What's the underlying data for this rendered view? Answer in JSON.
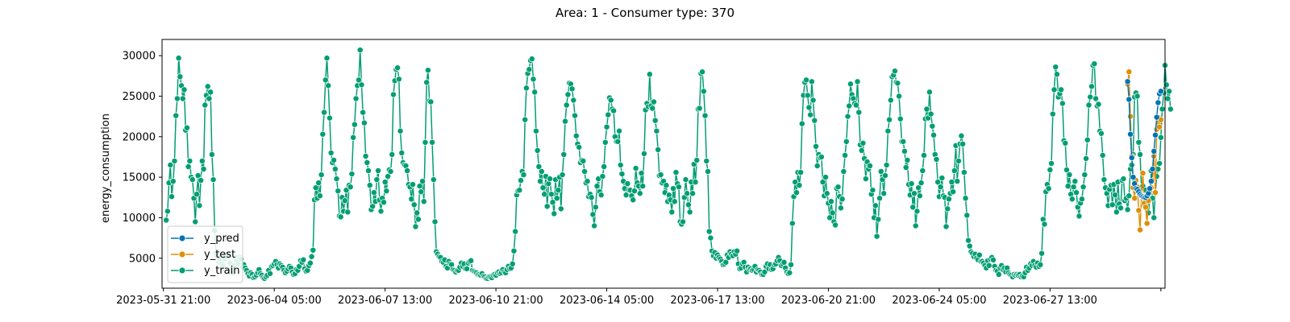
{
  "chart_data": {
    "type": "line",
    "title": "Area: 1 - Consumer type: 370",
    "xlabel": "",
    "ylabel": "energy_consumption",
    "x_tick_labels": [
      "2023-05-31 21:00",
      "2023-06-04 05:00",
      "2023-06-07 13:00",
      "2023-06-10 21:00",
      "2023-06-14 05:00",
      "2023-06-17 13:00",
      "2023-06-20 21:00",
      "2023-06-24 05:00",
      "2023-06-27 13:00",
      ""
    ],
    "x_ticks_hours": [
      0,
      80,
      160,
      240,
      320,
      400,
      480,
      560,
      640,
      720
    ],
    "xlim_hours": [
      -1,
      723
    ],
    "x_start": "2023-05-31 21:00",
    "x_step_hours": 1,
    "ylim": [
      1300,
      32000
    ],
    "y_ticks": [
      5000,
      10000,
      15000,
      20000,
      25000,
      30000
    ],
    "grid": false,
    "legend_position": "lower-left",
    "colors": {
      "y_pred": "#0173b2",
      "y_test": "#de8f05",
      "y_train": "#029e73"
    },
    "series": [
      {
        "name": "y_train",
        "start_offset_hours": 2,
        "values": [
          9700,
          10800,
          14300,
          16500,
          12600,
          14500,
          17000,
          22600,
          24700,
          29700,
          27400,
          26300,
          24700,
          25800,
          20800,
          21100,
          16300,
          17000,
          15000,
          14700,
          12400,
          9500,
          12900,
          15200,
          11500,
          14600,
          17000,
          16000,
          23900,
          25100,
          26200,
          24700,
          25500,
          17800,
          14700,
          8400,
          5600,
          5300,
          4600,
          4800,
          4300,
          4000,
          4900,
          5400,
          5300,
          5400,
          4400,
          3600,
          3200,
          4100,
          5100,
          4700,
          4300,
          5100,
          4900,
          4000,
          4200,
          3800,
          3500,
          3100,
          2800,
          3200,
          3000,
          2600,
          2700,
          2900,
          3200,
          3600,
          3100,
          2900,
          2600,
          2500,
          2700,
          2900,
          3500,
          3100,
          4000,
          4100,
          4300,
          4600,
          4200,
          3800,
          4300,
          4100,
          3900,
          3500,
          3200,
          3400,
          3700,
          4000,
          3800,
          3300,
          3000,
          3100,
          3600,
          3500,
          4000,
          4700,
          4500,
          4800,
          3700,
          3400,
          3500,
          4100,
          4400,
          5200,
          6000,
          12200,
          13700,
          12400,
          14300,
          12700,
          15300,
          20300,
          23000,
          27000,
          29700,
          26300,
          22300,
          18000,
          16800,
          17100,
          16000,
          14800,
          13300,
          10200,
          10100,
          12500,
          10800,
          12100,
          13400,
          10700,
          14000,
          13800,
          15400,
          19900,
          21500,
          24700,
          26300,
          27000,
          30700,
          26400,
          23000,
          21700,
          17600,
          16800,
          15800,
          14000,
          11000,
          11400,
          13100,
          12000,
          14700,
          15800,
          12200,
          10800,
          12400,
          11900,
          14400,
          13300,
          15100,
          15900,
          15700,
          17800,
          25200,
          26900,
          28300,
          28500,
          27100,
          20700,
          18000,
          16800,
          16500,
          16400,
          15800,
          14100,
          13800,
          12300,
          14100,
          11600,
          8900,
          10600,
          9800,
          13900,
          13200,
          14500,
          12000,
          19300,
          26700,
          28200,
          24400,
          24300,
          19300,
          14700,
          9500,
          5800,
          5500,
          5200,
          5100,
          4600,
          4500,
          4800,
          4000,
          3800,
          4600,
          4300,
          4200,
          3600,
          3500,
          3300,
          3500,
          3500,
          3900,
          4400,
          4000,
          4300,
          3700,
          3700,
          4400,
          4600,
          4700,
          3500,
          3400,
          3300,
          3200,
          3000,
          3000,
          2900,
          3100,
          2800,
          2700,
          2500,
          2500,
          2700,
          2700,
          2600,
          2900,
          3000,
          2900,
          3200,
          3300,
          3100,
          3200,
          3600,
          3300,
          3200,
          3600,
          4000,
          3700,
          3800,
          4300,
          5900,
          8300,
          12800,
          13300,
          13400,
          14600,
          15700,
          15300,
          22100,
          26000,
          27800,
          28300,
          29400,
          29600,
          27100,
          25500,
          20700,
          18300,
          16300,
          14500,
          15700,
          13700,
          12900,
          15100,
          11400,
          14200,
          14800,
          12900,
          11900,
          10500,
          14700,
          12400,
          13400,
          15000,
          11100,
          15300,
          17800,
          21900,
          23900,
          25200,
          26600,
          26500,
          25900,
          24500,
          22600,
          20100,
          19100,
          18700,
          16800,
          17100,
          17000,
          15700,
          14300,
          14500,
          12600,
          12900,
          12500,
          10400,
          9000,
          11300,
          13900,
          14800,
          13200,
          12800,
          15100,
          16300,
          19300,
          21200,
          22700,
          24800,
          24500,
          23400,
          23200,
          20000,
          19400,
          19400,
          20700,
          16500,
          15400,
          14500,
          13600,
          12800,
          14200,
          13400,
          13400,
          12700,
          12200,
          13300,
          16100,
          14300,
          13900,
          13000,
          15500,
          13900,
          17900,
          23300,
          24100,
          23700,
          27700,
          23800,
          23500,
          24300,
          22000,
          20700,
          18400,
          15200,
          15300,
          14300,
          14500,
          13100,
          14000,
          12000,
          12800,
          12200,
          10700,
          13600,
          12000,
          15600,
          14200,
          13800,
          9500,
          9200,
          9500,
          12500,
          14700,
          13000,
          11600,
          10700,
          14400,
          13000,
          16600,
          14400,
          17100,
          23400,
          23500,
          27800,
          28000,
          25600,
          22600,
          17000,
          15700,
          8300,
          7500,
          5900,
          5300,
          5700,
          5000,
          5400,
          5100,
          4900,
          4600,
          4200,
          4300,
          4500,
          5400,
          5100,
          5800,
          5500,
          5300,
          5800,
          5500,
          5900,
          4300,
          3700,
          3800,
          4300,
          4500,
          3900,
          3300,
          3900,
          3600,
          3700,
          3500,
          3600,
          4000,
          3300,
          3600,
          3500,
          3300,
          3000,
          3000,
          3300,
          4000,
          4300,
          3700,
          4200,
          3600,
          3700,
          4200,
          4300,
          4700,
          5100,
          4700,
          4100,
          4300,
          4500,
          3800,
          3300,
          3100,
          3200,
          4200,
          9300,
          12600,
          14400,
          13100,
          15600,
          14000,
          15600,
          21600,
          25100,
          26700,
          27000,
          25100,
          23600,
          22700,
          26800,
          24500,
          22000,
          18800,
          16400,
          17800,
          17400,
          17500,
          14400,
          12700,
          15000,
          13000,
          11800,
          10000,
          12000,
          10600,
          9500,
          9100,
          13600,
          13800,
          12600,
          11200,
          12300,
          15700,
          17700,
          19400,
          22500,
          23800,
          26500,
          25200,
          24700,
          24100,
          23900,
          26800,
          23000,
          19000,
          18300,
          19200,
          17300,
          14800,
          16900,
          16000,
          16400,
          12900,
          13400,
          10000,
          11500,
          7700,
          9800,
          12400,
          15700,
          14700,
          13000,
          15200,
          16500,
          20700,
          22100,
          24500,
          27400,
          27600,
          28100,
          26700,
          26600,
          25000,
          22200,
          19400,
          19400,
          18200,
          16200,
          17100,
          14100,
          12800,
          14200,
          11300,
          13000,
          9000,
          10800,
          13700,
          12700,
          14300,
          15800,
          17700,
          22200,
          23400,
          22300,
          25500,
          22800,
          21300,
          20200,
          17800,
          17200,
          14400,
          12600,
          13800,
          14900,
          12700,
          12500,
          8900,
          11100,
          12300,
          13000,
          14400,
          13200,
          15800,
          18900,
          14500,
          17000,
          19100,
          20100,
          19100,
          15600,
          12400,
          10300,
          7200,
          6500,
          5800,
          5600,
          5200,
          5500,
          5000,
          4800,
          5400,
          4600,
          4600,
          4400,
          4100,
          3800,
          4700,
          4100,
          4900,
          5100,
          4800,
          4000,
          3500,
          3400,
          3000,
          3800,
          4100,
          3600,
          3800,
          3300,
          3800,
          3200,
          3000,
          2900,
          2700,
          3000,
          2900,
          3000,
          2900,
          3000,
          2700,
          2800,
          2700,
          3200,
          3900,
          3500,
          3800,
          4300,
          4100,
          4600,
          4100,
          3900,
          4400,
          4000,
          4200,
          5600,
          9800,
          9200,
          13200,
          14100,
          13600,
          15900,
          16700,
          22800,
          25800,
          28600,
          27700,
          24900,
          25300,
          25800,
          24100,
          19500,
          19200,
          15900,
          13900,
          15300,
          12900,
          12300,
          13800,
          14500,
          13100,
          11300,
          10200,
          11800,
          12300,
          13800,
          15300,
          17300,
          19600,
          23900,
          24900,
          26200,
          28800,
          29000,
          24700,
          23800,
          24000,
          20700,
          20400,
          17700,
          14700,
          13700,
          13000,
          11500,
          13500,
          14000,
          11600,
          14100,
          12800,
          10700,
          14400,
          11700,
          11200,
          14600,
          14800,
          12100,
          12400,
          11000,
          12700,
          16000,
          16500,
          17800,
          24900,
          25400,
          25000,
          19300,
          17800,
          13500,
          13900,
          11600,
          13400,
          12000,
          10600,
          12200,
          15800,
          12400,
          10000,
          13100,
          15100,
          16000,
          16700,
          19900,
          23400,
          25400,
          28800,
          26400,
          24700,
          25600,
          23400
        ]
      },
      {
        "name": "y_test",
        "start_offset_hours": 696,
        "values": [
          26500,
          28000,
          22500,
          17600,
          13700,
          12400,
          14600,
          13800,
          10900,
          8500,
          12900,
          15500,
          11800,
          11300,
          9300,
          12100,
          13300,
          13700,
          14600,
          17600,
          13100,
          20900,
          22400,
          21200,
          22100
        ]
      },
      {
        "name": "y_pred",
        "start_offset_hours": 696,
        "values": [
          26800,
          24600,
          20300,
          17400,
          15000,
          14200,
          13600,
          13500,
          13200,
          12900,
          12700,
          12600,
          12500,
          12500,
          12700,
          13000,
          13600,
          14500,
          16000,
          18200,
          20200,
          22400,
          24200,
          25300,
          25600
        ]
      }
    ]
  }
}
